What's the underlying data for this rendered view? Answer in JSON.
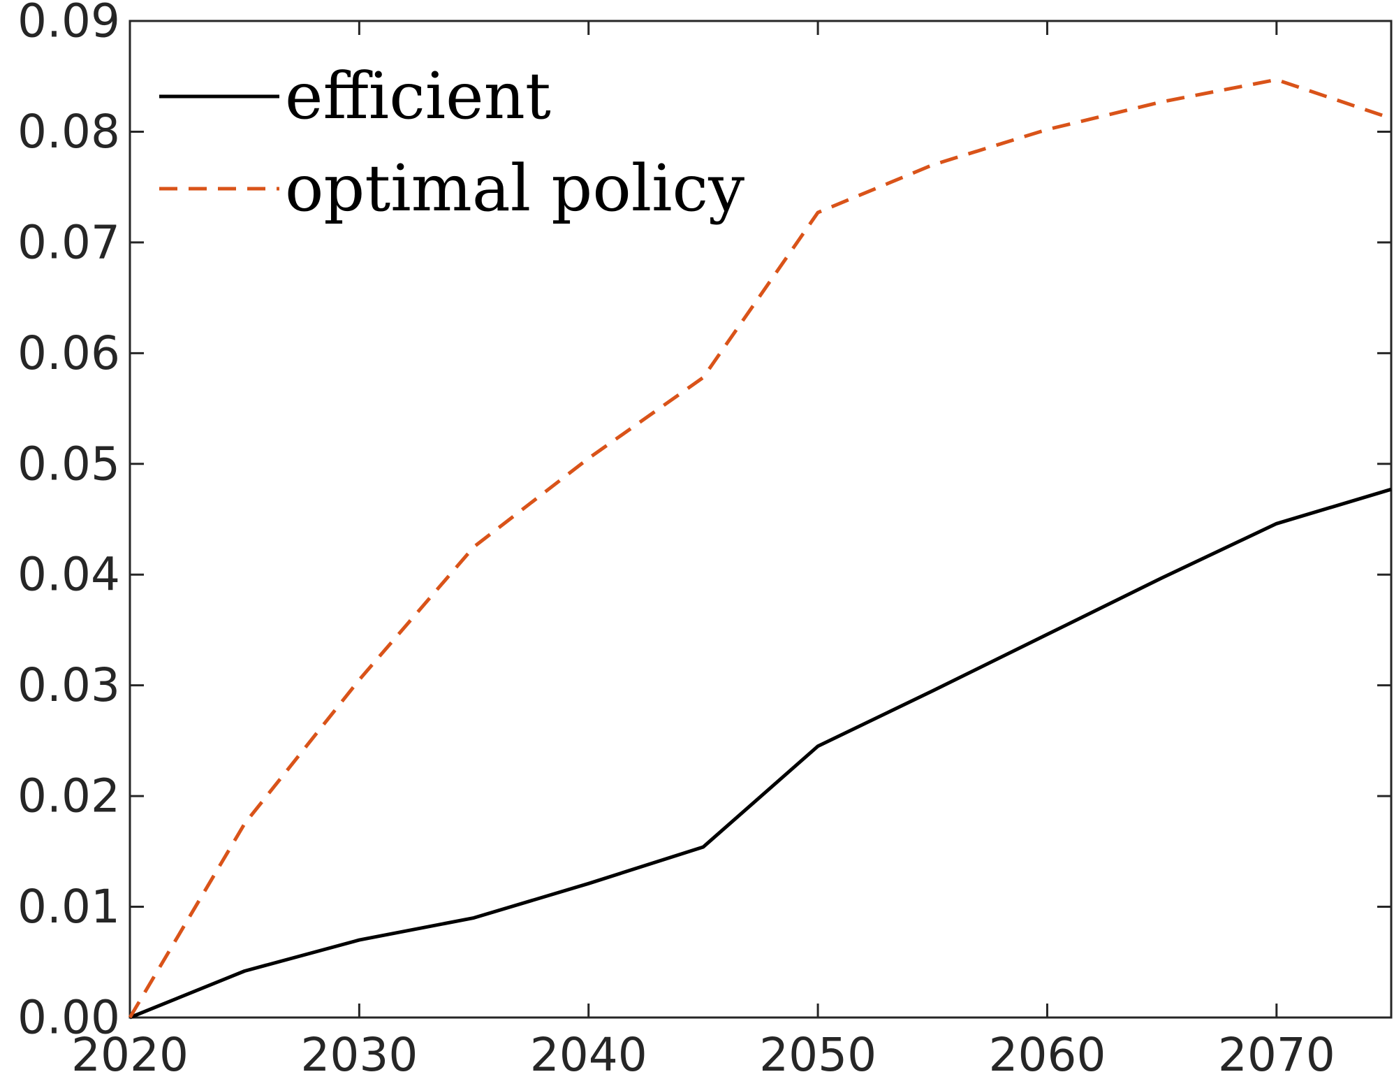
{
  "chart_data": {
    "type": "line",
    "title": "",
    "xlabel": "",
    "ylabel": "",
    "xlim": [
      2020,
      2075
    ],
    "ylim": [
      0,
      0.09
    ],
    "x_ticks": [
      2020,
      2030,
      2040,
      2050,
      2060,
      2070
    ],
    "x_tick_labels": [
      "2020",
      "2030",
      "2040",
      "2050",
      "2060",
      "2070"
    ],
    "y_ticks": [
      0,
      0.01,
      0.02,
      0.03,
      0.04,
      0.05,
      0.06,
      0.07,
      0.08,
      0.09
    ],
    "y_tick_labels": [
      "0.00",
      "0.01",
      "0.02",
      "0.03",
      "0.04",
      "0.05",
      "0.06",
      "0.07",
      "0.08",
      "0.09"
    ],
    "grid": false,
    "legend_position": "top-left",
    "x": [
      2020,
      2025,
      2030,
      2035,
      2040,
      2045,
      2050,
      2055,
      2060,
      2065,
      2070,
      2075
    ],
    "series": [
      {
        "name": "efficient",
        "color": "#000000",
        "style": "solid",
        "values": [
          0.0,
          0.0042,
          0.007,
          0.009,
          0.0121,
          0.0154,
          0.0245,
          0.0295,
          0.0346,
          0.0397,
          0.0446,
          0.0477
        ]
      },
      {
        "name": "optimal policy",
        "color": "#d95319",
        "style": "dashed",
        "values": [
          0.0,
          0.0175,
          0.0305,
          0.0425,
          0.0505,
          0.0578,
          0.0727,
          0.077,
          0.0802,
          0.0827,
          0.0847,
          0.0812
        ]
      }
    ]
  }
}
